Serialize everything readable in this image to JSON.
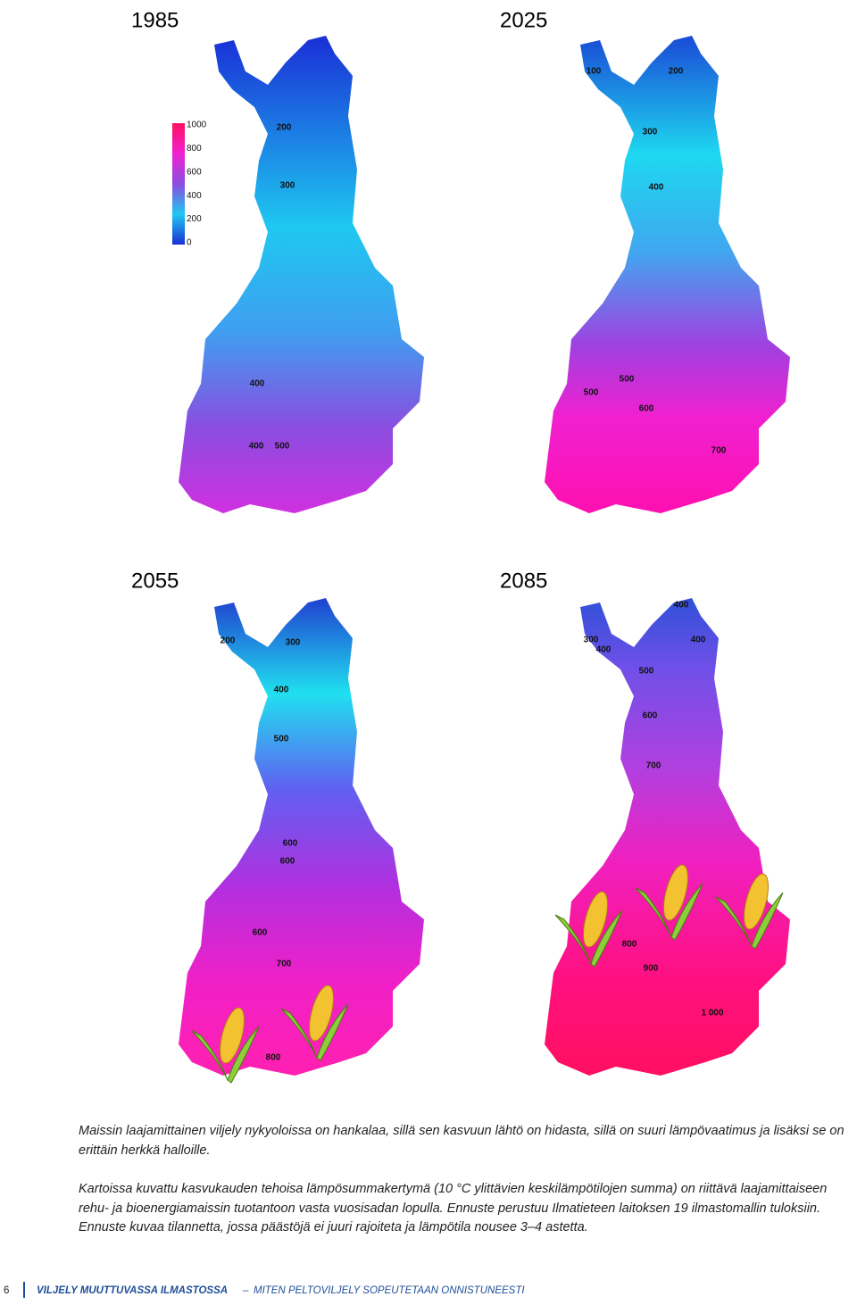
{
  "maps": [
    {
      "year": "1985",
      "contours": [
        "200",
        "300",
        "400",
        "400",
        "500"
      ]
    },
    {
      "year": "2025",
      "contours": [
        "100",
        "200",
        "300",
        "400",
        "500",
        "500",
        "600",
        "700"
      ]
    },
    {
      "year": "2055",
      "contours": [
        "200",
        "300",
        "400",
        "500",
        "600",
        "600",
        "600",
        "700",
        "800"
      ]
    },
    {
      "year": "2085",
      "contours": [
        "300",
        "400",
        "400",
        "400",
        "500",
        "600",
        "700",
        "800",
        "900",
        "1 000"
      ]
    }
  ],
  "legend": {
    "labels": [
      "1000",
      "800",
      "600",
      "400",
      "200",
      "0"
    ]
  },
  "caption": {
    "paragraphs": [
      "Maissin laajamittainen viljely nykyoloissa on hankalaa, sillä sen kasvuun lähtö on hidasta, sillä on suuri lämpövaatimus ja lisäksi se on erittäin herkkä halloille.",
      "Kartoissa kuvattu kasvukauden tehoisa lämpösummakertymä (10 °C ylittävien keskilämpötilojen summa) on riittävä laajamittaiseen rehu- ja bioenergiamaissin tuotantoon vasta vuosisadan lopulla. Ennuste perustuu Ilmatieteen laitoksen 19 ilmastomallin tuloksiin. Ennuste kuvaa tilannetta, jossa päästöjä ei juuri rajoiteta ja lämpötila nousee 3–4 astetta."
    ]
  },
  "footer": {
    "page": "6",
    "title": "VILJELY MUUTTUVASSA ILMASTOSSA",
    "separator": "–",
    "subtitle": "MITEN PELTOVILJELY SOPEUTETAAN ONNISTUNEESTI"
  }
}
